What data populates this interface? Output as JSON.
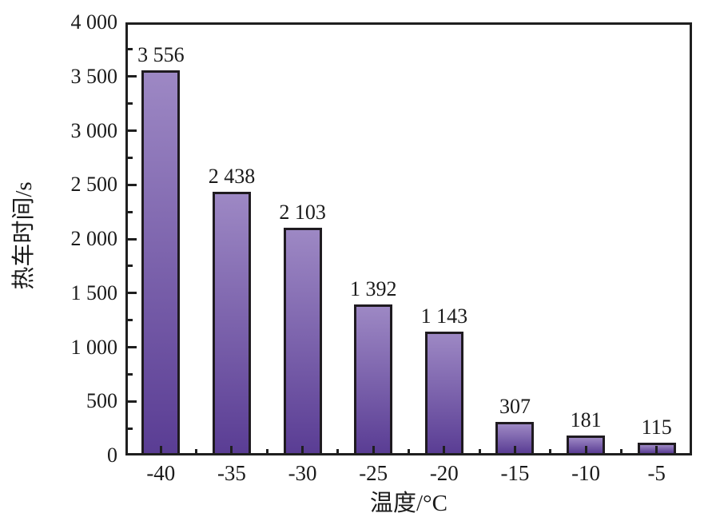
{
  "figure": {
    "background": "#ffffff"
  },
  "chart_data": {
    "type": "bar",
    "title": "",
    "xlabel": "温度/°C",
    "ylabel": "热车时间/s",
    "categories": [
      "-40",
      "-35",
      "-30",
      "-25",
      "-20",
      "-15",
      "-10",
      "-5"
    ],
    "values": [
      3556,
      2438,
      2103,
      1392,
      1143,
      307,
      181,
      115
    ],
    "value_labels": [
      "3 556",
      "2 438",
      "2 103",
      "1 392",
      "1 143",
      "307",
      "181",
      "115"
    ],
    "ylim": [
      0,
      4000
    ],
    "y_major_tick_interval": 500,
    "y_minor_tick_interval": 250,
    "y_tick_values": [
      0,
      500,
      1000,
      1500,
      2000,
      2500,
      3000,
      3500,
      4000
    ],
    "y_tick_labels": [
      "0",
      "500",
      "1 000",
      "1 500",
      "2 000",
      "2 500",
      "3 000",
      "3 500",
      "4 000"
    ],
    "grid": false,
    "legend": null,
    "colors": {
      "bar_gradient_top": "#9d88c4",
      "bar_gradient_bottom": "#5a3d94",
      "bar_border": "#1f1b20",
      "axis": "#1f1f1f",
      "text": "#1a1a1a"
    }
  }
}
